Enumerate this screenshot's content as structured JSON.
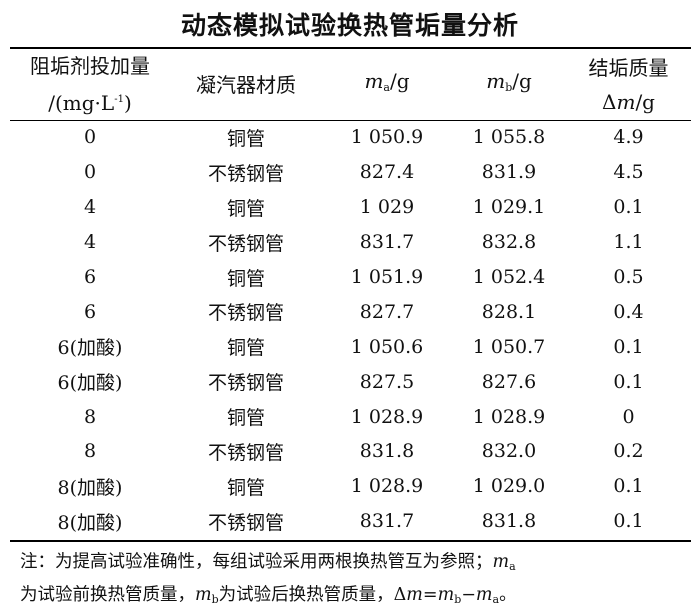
{
  "title": "动态模拟试验换热管垢量分析",
  "headers": {
    "dosage_line1": "阻垢剂投加量",
    "dosage_line2_prefix": "/(mg·L",
    "dosage_line2_sup": "-1",
    "dosage_line2_suffix": ")",
    "material": "凝汽器材质",
    "ma_symbol": "m",
    "ma_sub": "a",
    "ma_unit": "/g",
    "mb_symbol": "m",
    "mb_sub": "b",
    "mb_unit": "/g",
    "scale_line1": "结垢质量",
    "scale_delta": "Δ",
    "scale_symbol": "m",
    "scale_unit": "/g"
  },
  "rows": [
    {
      "dosage": "0",
      "material": "铜管",
      "ma": "1 050.9",
      "mb": "1 055.8",
      "dm": "4.9"
    },
    {
      "dosage": "0",
      "material": "不锈钢管",
      "ma": "827.4",
      "mb": "831.9",
      "dm": "4.5"
    },
    {
      "dosage": "4",
      "material": "铜管",
      "ma": "1 029",
      "mb": "1 029.1",
      "dm": "0.1"
    },
    {
      "dosage": "4",
      "material": "不锈钢管",
      "ma": "831.7",
      "mb": "832.8",
      "dm": "1.1"
    },
    {
      "dosage": "6",
      "material": "铜管",
      "ma": "1 051.9",
      "mb": "1 052.4",
      "dm": "0.5"
    },
    {
      "dosage": "6",
      "material": "不锈钢管",
      "ma": "827.7",
      "mb": "828.1",
      "dm": "0.4"
    },
    {
      "dosage": "6(加酸)",
      "material": "铜管",
      "ma": "1 050.6",
      "mb": "1 050.7",
      "dm": "0.1"
    },
    {
      "dosage": "6(加酸)",
      "material": "不锈钢管",
      "ma": "827.5",
      "mb": "827.6",
      "dm": "0.1"
    },
    {
      "dosage": "8",
      "material": "铜管",
      "ma": "1 028.9",
      "mb": "1 028.9",
      "dm": "0"
    },
    {
      "dosage": "8",
      "material": "不锈钢管",
      "ma": "831.8",
      "mb": "832.0",
      "dm": "0.2"
    },
    {
      "dosage": "8(加酸)",
      "material": "铜管",
      "ma": "1 028.9",
      "mb": "1 029.0",
      "dm": "0.1"
    },
    {
      "dosage": "8(加酸)",
      "material": "不锈钢管",
      "ma": "831.7",
      "mb": "831.8",
      "dm": "0.1"
    }
  ],
  "note": {
    "line1_text": "注：为提高试验准确性，每组试验采用两根换热管互为参照；",
    "line1_sym": "m",
    "line1_sub": "a",
    "line2_a": "为试验前换热管质量，",
    "line2_sym_b": "m",
    "line2_sub_b": "b",
    "line2_b": "为试验后换热管质量，",
    "line2_formula_delta": "Δ",
    "line2_formula_m": "m",
    "line2_formula_eq": "=",
    "line2_formula_mb": "m",
    "line2_formula_mb_sub": "b",
    "line2_formula_minus": "−",
    "line2_formula_ma": "m",
    "line2_formula_ma_sub": "a",
    "line2_end": "。"
  }
}
